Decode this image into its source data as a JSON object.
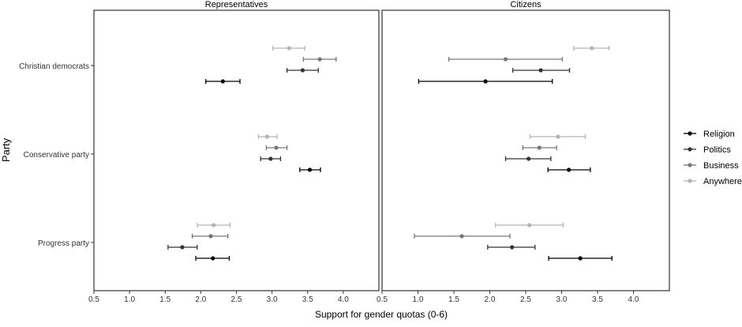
{
  "chart_data": {
    "type": "scatter",
    "subtype": "point-range (dot with error bars), faceted",
    "xlabel": "Support for gender quotas (0-6)",
    "ylabel": "Party",
    "xlim": [
      0.5,
      4.5
    ],
    "x_ticks": [
      "0.5",
      "1.0",
      "1.5",
      "2.0",
      "2.5",
      "3.0",
      "3.5",
      "4.0"
    ],
    "categories": [
      "Christian democrats",
      "Conservative party",
      "Progress party"
    ],
    "grid": false,
    "legend": {
      "placement": "right",
      "entries": [
        {
          "name": "Religion",
          "color": "#000000"
        },
        {
          "name": "Politics",
          "color": "#333333"
        },
        {
          "name": "Business",
          "color": "#777777"
        },
        {
          "name": "Anywhere",
          "color": "#b4b4b4"
        }
      ]
    },
    "panels": [
      {
        "title": "Representatives",
        "series": [
          {
            "name": "Anywhere",
            "values": [
              3.24,
              2.93,
              2.18
            ],
            "lower": [
              3.01,
              2.81,
              1.95
            ],
            "upper": [
              3.46,
              3.07,
              2.41
            ]
          },
          {
            "name": "Business",
            "values": [
              3.67,
              3.06,
              2.14
            ],
            "lower": [
              3.44,
              2.92,
              1.88
            ],
            "upper": [
              3.9,
              3.21,
              2.38
            ]
          },
          {
            "name": "Politics",
            "values": [
              3.43,
              2.98,
              1.74
            ],
            "lower": [
              3.21,
              2.84,
              1.54
            ],
            "upper": [
              3.65,
              3.12,
              1.95
            ]
          },
          {
            "name": "Religion",
            "values": [
              2.31,
              3.53,
              2.17
            ],
            "lower": [
              2.07,
              3.39,
              1.93
            ],
            "upper": [
              2.55,
              3.68,
              2.4
            ]
          }
        ]
      },
      {
        "title": "Citizens",
        "series": [
          {
            "name": "Anywhere",
            "values": [
              3.42,
              2.95,
              2.55
            ],
            "lower": [
              3.17,
              2.56,
              2.08
            ],
            "upper": [
              3.66,
              3.33,
              3.02
            ]
          },
          {
            "name": "Business",
            "values": [
              2.22,
              2.69,
              1.61
            ],
            "lower": [
              1.43,
              2.46,
              0.95
            ],
            "upper": [
              3.01,
              2.93,
              2.28
            ]
          },
          {
            "name": "Politics",
            "values": [
              2.71,
              2.54,
              2.31
            ],
            "lower": [
              2.32,
              2.22,
              1.97
            ],
            "upper": [
              3.11,
              2.85,
              2.63
            ]
          },
          {
            "name": "Religion",
            "values": [
              1.94,
              3.1,
              3.26
            ],
            "lower": [
              1.01,
              2.81,
              2.82
            ],
            "upper": [
              2.87,
              3.4,
              3.7
            ]
          }
        ]
      }
    ]
  }
}
